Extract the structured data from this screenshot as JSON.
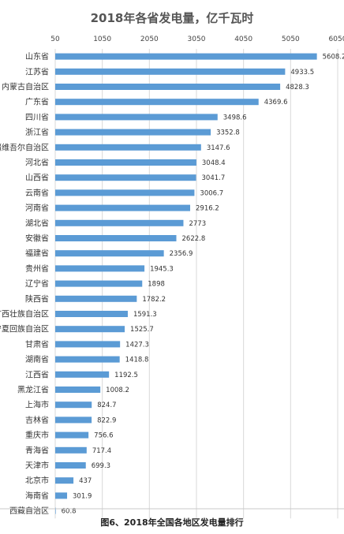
{
  "chart_data": {
    "type": "bar",
    "orientation": "horizontal",
    "title": "2018年各省发电量，亿千瓦时",
    "xlim": [
      50,
      6050
    ],
    "xticks": [
      "50",
      "1050",
      "2050",
      "3050",
      "4050",
      "5050",
      "6050"
    ],
    "grid": true,
    "categories": [
      "山东省",
      "江苏省",
      "内蒙古自治区",
      "广东省",
      "四川省",
      "浙江省",
      "新疆维吾尔自治区",
      "河北省",
      "山西省",
      "云南省",
      "河南省",
      "湖北省",
      "安徽省",
      "福建省",
      "贵州省",
      "辽宁省",
      "陕西省",
      "广西壮族自治区",
      "宁夏回族自治区",
      "甘肃省",
      "湖南省",
      "江西省",
      "黑龙江省",
      "上海市",
      "吉林省",
      "重庆市",
      "青海省",
      "天津市",
      "北京市",
      "海南省",
      "西藏自治区"
    ],
    "values": [
      5608.2,
      4933.5,
      4828.3,
      4369.6,
      3498.6,
      3352.8,
      3147.6,
      3048.4,
      3041.7,
      3006.7,
      2916.2,
      2773,
      2622.8,
      2356.9,
      1945.3,
      1898,
      1782.2,
      1591.3,
      1525.7,
      1427.3,
      1418.8,
      1192.5,
      1008.2,
      824.7,
      822.9,
      756.6,
      717.4,
      699.3,
      437,
      301.9,
      60.8
    ],
    "value_labels": [
      "5608.2",
      "4933.5",
      "4828.3",
      "4369.6",
      "3498.6",
      "3352.8",
      "3147.6",
      "3048.4",
      "3041.7",
      "3006.7",
      "2916.2",
      "2773",
      "2622.8",
      "2356.9",
      "1945.3",
      "1898",
      "1782.2",
      "1591.3",
      "1525.7",
      "1427.3",
      "1418.8",
      "1192.5",
      "1008.2",
      "824.7",
      "822.9",
      "756.6",
      "717.4",
      "699.3",
      "437",
      "301.9",
      "60.8"
    ],
    "bar_color": "#5b9bd5"
  },
  "caption": "图6、2018年全国各地区发电量排行"
}
